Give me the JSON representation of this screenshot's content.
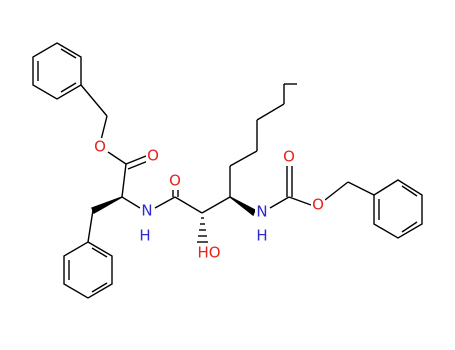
{
  "atom_labels": [
    "O",
    "O",
    "N",
    "H",
    "O",
    "HO",
    "N",
    "H",
    "O",
    "O"
  ]
}
